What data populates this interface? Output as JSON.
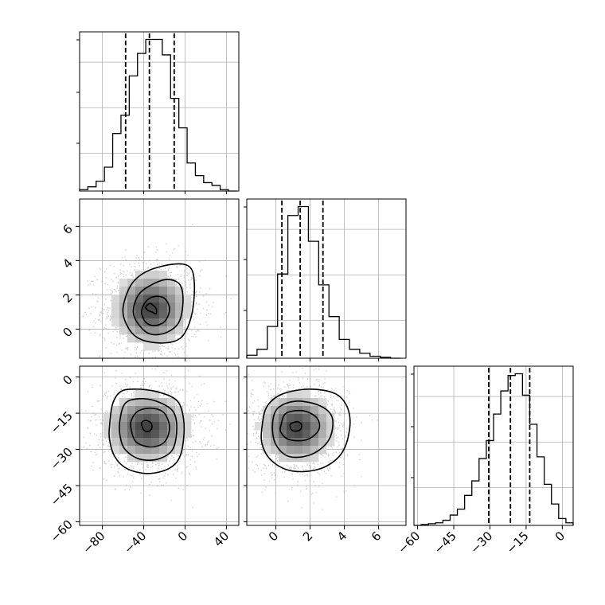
{
  "chart_data": {
    "type": "corner",
    "title": "",
    "parameters": [
      {
        "name": "",
        "range": [
          -102,
          52
        ],
        "ticks": [
          -80,
          -40,
          0,
          40
        ],
        "tick_labels": [
          "−80",
          "−40",
          "0",
          "40"
        ]
      },
      {
        "name": "",
        "range": [
          -1.7,
          7.6
        ],
        "ticks": [
          0,
          2,
          4,
          6
        ],
        "tick_labels": [
          "0",
          "2",
          "4",
          "6"
        ]
      },
      {
        "name": "",
        "range": [
          -61.5,
          4.5
        ],
        "ticks": [
          -60,
          -45,
          -30,
          -15,
          0
        ],
        "tick_labels": [
          "−60",
          "−45",
          "−30",
          "−15",
          "0"
        ]
      }
    ],
    "grid": true,
    "marginals": [
      {
        "type": "histogram",
        "quantiles": [
          -57.5,
          -34.5,
          -10.5
        ],
        "bin_edges": [
          -102,
          -94,
          -86,
          -78,
          -70,
          -62,
          -54,
          -46,
          -38,
          -30,
          -22,
          -14,
          -6,
          2,
          10,
          18,
          26,
          34,
          42,
          50
        ],
        "counts": [
          1,
          3,
          7,
          17,
          41,
          54,
          82,
          98,
          108,
          108,
          97,
          66,
          45,
          20,
          11,
          6,
          4,
          1,
          0
        ]
      },
      {
        "type": "histogram",
        "quantiles": [
          0.35,
          1.42,
          2.75
        ],
        "bin_edges": [
          -1.7,
          -1.1,
          -0.5,
          0.1,
          0.7,
          1.3,
          1.9,
          2.5,
          3.1,
          3.7,
          4.3,
          4.9,
          5.5,
          6.1,
          6.7,
          7.3
        ],
        "counts": [
          3,
          9,
          32,
          85,
          144,
          153,
          118,
          74,
          42,
          19,
          9,
          5,
          2,
          1,
          0
        ]
      },
      {
        "type": "histogram",
        "quantiles": [
          -30.5,
          -21.5,
          -13.5
        ],
        "bin_edges": [
          -61.5,
          -58.5,
          -55.5,
          -52.5,
          -49.5,
          -46.5,
          -43.5,
          -40.5,
          -37.5,
          -34.5,
          -31.5,
          -28.5,
          -25.5,
          -22.5,
          -19.5,
          -16.5,
          -13.5,
          -10.5,
          -7.5,
          -4.5,
          -1.5,
          1.5,
          4.5
        ],
        "counts": [
          0,
          1,
          2,
          3,
          6,
          12,
          19,
          35,
          52,
          78,
          99,
          130,
          157,
          175,
          177,
          152,
          118,
          80,
          48,
          25,
          8,
          3
        ]
      }
    ],
    "pairs": [
      {
        "x_param": 0,
        "y_param": 1,
        "type": "contour",
        "center": [
          -33,
          1.2
        ],
        "spread": [
          20,
          1.2
        ],
        "contours": [
          {
            "level": "outer",
            "points": [
              [
                -60,
                1.2
              ],
              [
                -52,
                2.6
              ],
              [
                -36,
                3.4
              ],
              [
                -10,
                3.8
              ],
              [
                5,
                3.6
              ],
              [
                9,
                2.6
              ],
              [
                7,
                1.0
              ],
              [
                0,
                -0.2
              ],
              [
                -10,
                -0.7
              ],
              [
                -28,
                -0.8
              ],
              [
                -46,
                -0.5
              ],
              [
                -56,
                0.2
              ]
            ]
          },
          {
            "level": "middle",
            "points": [
              [
                -50,
                1.0
              ],
              [
                -45,
                2.0
              ],
              [
                -32,
                2.6
              ],
              [
                -17,
                2.9
              ],
              [
                -5,
                2.6
              ],
              [
                -2,
                1.6
              ],
              [
                -6,
                0.4
              ],
              [
                -18,
                -0.2
              ],
              [
                -33,
                -0.3
              ],
              [
                -44,
                0.2
              ]
            ]
          },
          {
            "level": "inner",
            "points": [
              [
                -42,
                1.0
              ],
              [
                -38,
                1.6
              ],
              [
                -30,
                1.9
              ],
              [
                -20,
                1.8
              ],
              [
                -15,
                1.2
              ],
              [
                -19,
                0.5
              ],
              [
                -29,
                0.2
              ],
              [
                -38,
                0.4
              ]
            ]
          },
          {
            "level": "core",
            "points": [
              [
                -38,
                1.3
              ],
              [
                -34,
                1.5
              ],
              [
                -31,
                1.4
              ],
              [
                -28,
                1.2
              ],
              [
                -28,
                0.9
              ],
              [
                -32,
                1.0
              ],
              [
                -36,
                1.1
              ]
            ]
          }
        ]
      },
      {
        "x_param": 0,
        "y_param": 2,
        "type": "contour",
        "center": [
          -37,
          -21
        ],
        "spread": [
          22,
          8
        ],
        "contours": [
          {
            "level": "outer",
            "points": [
              [
                -73,
                -20
              ],
              [
                -70,
                -11
              ],
              [
                -62,
                -6
              ],
              [
                -48,
                -5
              ],
              [
                -28,
                -6
              ],
              [
                -10,
                -9
              ],
              [
                -3,
                -14
              ],
              [
                -1,
                -23
              ],
              [
                -5,
                -33
              ],
              [
                -16,
                -38
              ],
              [
                -36,
                -40
              ],
              [
                -56,
                -38
              ],
              [
                -68,
                -33
              ],
              [
                -73,
                -26
              ]
            ]
          },
          {
            "level": "middle",
            "points": [
              [
                -63,
                -18
              ],
              [
                -58,
                -11
              ],
              [
                -45,
                -9
              ],
              [
                -28,
                -10
              ],
              [
                -12,
                -14
              ],
              [
                -8,
                -21
              ],
              [
                -12,
                -30
              ],
              [
                -26,
                -34
              ],
              [
                -44,
                -34
              ],
              [
                -58,
                -30
              ],
              [
                -63,
                -24
              ]
            ]
          },
          {
            "level": "inner",
            "points": [
              [
                -52,
                -18
              ],
              [
                -45,
                -14
              ],
              [
                -31,
                -13
              ],
              [
                -20,
                -15
              ],
              [
                -15,
                -21
              ],
              [
                -20,
                -27
              ],
              [
                -33,
                -29
              ],
              [
                -47,
                -27
              ],
              [
                -52,
                -22
              ]
            ]
          },
          {
            "level": "core",
            "points": [
              [
                -42,
                -19
              ],
              [
                -38,
                -18
              ],
              [
                -33,
                -19
              ],
              [
                -32,
                -21
              ],
              [
                -35,
                -22.5
              ],
              [
                -40,
                -22
              ]
            ]
          }
        ]
      },
      {
        "x_param": 1,
        "y_param": 2,
        "type": "contour",
        "center": [
          1.2,
          -21
        ],
        "spread": [
          1.2,
          8
        ],
        "contours": [
          {
            "level": "outer",
            "points": [
              [
                -0.8,
                -20
              ],
              [
                -0.5,
                -12
              ],
              [
                0.4,
                -7
              ],
              [
                2.0,
                -5
              ],
              [
                3.5,
                -7
              ],
              [
                4.2,
                -13
              ],
              [
                4.3,
                -22
              ],
              [
                3.8,
                -32
              ],
              [
                2.6,
                -38
              ],
              [
                1.0,
                -39
              ],
              [
                -0.2,
                -35
              ],
              [
                -0.8,
                -28
              ]
            ]
          },
          {
            "level": "middle",
            "points": [
              [
                -0.2,
                -20
              ],
              [
                0.1,
                -13
              ],
              [
                1.2,
                -10
              ],
              [
                2.6,
                -12
              ],
              [
                3.3,
                -17
              ],
              [
                3.1,
                -26
              ],
              [
                2.1,
                -32
              ],
              [
                0.8,
                -33
              ],
              [
                0.0,
                -28
              ]
            ]
          },
          {
            "level": "inner",
            "points": [
              [
                0.3,
                -20
              ],
              [
                0.6,
                -15
              ],
              [
                1.6,
                -14
              ],
              [
                2.4,
                -17
              ],
              [
                2.5,
                -22
              ],
              [
                1.8,
                -26
              ],
              [
                0.8,
                -26
              ],
              [
                0.3,
                -23
              ]
            ]
          },
          {
            "level": "core",
            "points": [
              [
                0.85,
                -19.5
              ],
              [
                1.25,
                -18.5
              ],
              [
                1.5,
                -19.8
              ],
              [
                1.4,
                -22
              ],
              [
                1.0,
                -22.3
              ],
              [
                0.85,
                -21
              ]
            ]
          }
        ]
      }
    ]
  }
}
